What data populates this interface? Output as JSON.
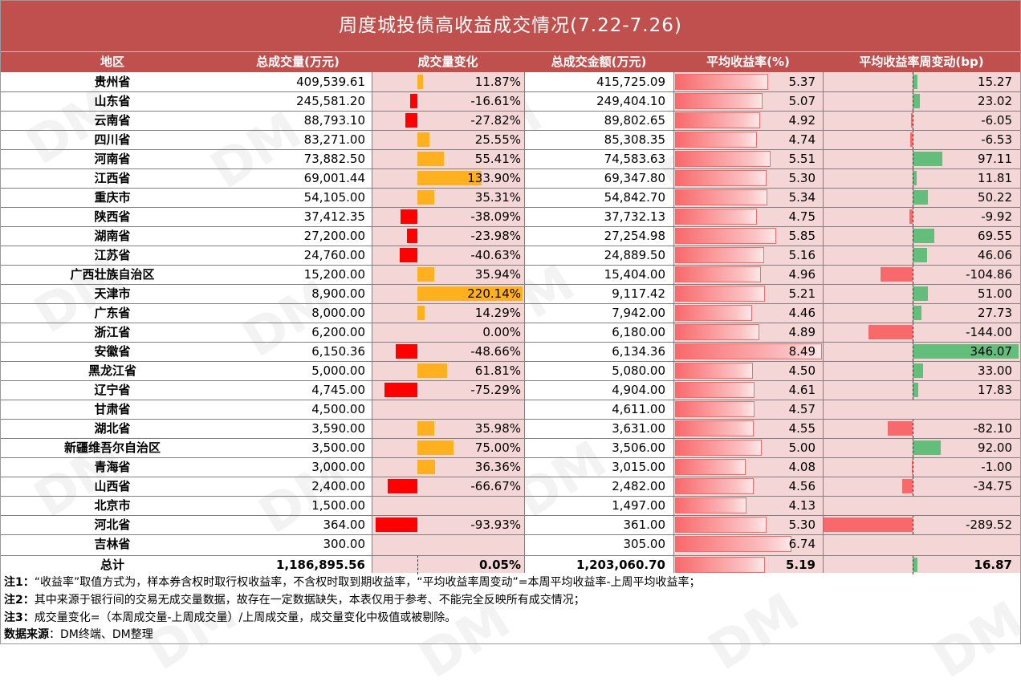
{
  "title": "周度城投债高收益成交情况(7.22-7.26)",
  "watermark_text": "DM",
  "colors": {
    "header_bg": "#c0504d",
    "band_bg": "#f4d6d6",
    "change_positive": "#ffb01f",
    "change_negative": "#ff0000",
    "yield_bar": "#f8696b",
    "bp_positive": "#63be7b",
    "bp_negative": "#f8696b"
  },
  "columns": [
    "地区",
    "总成交量(万元)",
    "成交量变化",
    "总成交金额(万元)",
    "平均收益率(%)",
    "平均收益率周变动(bp)"
  ],
  "chart_data": {
    "type": "table",
    "title": "周度城投债高收益成交情况(7.22-7.26)",
    "rows": [
      {
        "region": "贵州省",
        "volume": "409,539.61",
        "change": "11.87%",
        "change_val": 11.87,
        "amount": "415,725.09",
        "yield": "5.37",
        "yield_val": 5.37,
        "bp": "15.27",
        "bp_val": 15.27
      },
      {
        "region": "山东省",
        "volume": "245,581.20",
        "change": "-16.61%",
        "change_val": -16.61,
        "amount": "249,404.10",
        "yield": "5.07",
        "yield_val": 5.07,
        "bp": "23.02",
        "bp_val": 23.02
      },
      {
        "region": "云南省",
        "volume": "88,793.10",
        "change": "-27.82%",
        "change_val": -27.82,
        "amount": "89,802.65",
        "yield": "4.92",
        "yield_val": 4.92,
        "bp": "-6.05",
        "bp_val": -6.05
      },
      {
        "region": "四川省",
        "volume": "83,271.00",
        "change": "25.55%",
        "change_val": 25.55,
        "amount": "85,308.35",
        "yield": "4.74",
        "yield_val": 4.74,
        "bp": "-6.53",
        "bp_val": -6.53
      },
      {
        "region": "河南省",
        "volume": "73,882.50",
        "change": "55.41%",
        "change_val": 55.41,
        "amount": "74,583.63",
        "yield": "5.51",
        "yield_val": 5.51,
        "bp": "97.11",
        "bp_val": 97.11
      },
      {
        "region": "江西省",
        "volume": "69,001.44",
        "change": "133.90%",
        "change_val": 133.9,
        "amount": "69,347.80",
        "yield": "5.30",
        "yield_val": 5.3,
        "bp": "11.81",
        "bp_val": 11.81
      },
      {
        "region": "重庆市",
        "volume": "54,105.00",
        "change": "35.31%",
        "change_val": 35.31,
        "amount": "54,842.70",
        "yield": "5.34",
        "yield_val": 5.34,
        "bp": "50.22",
        "bp_val": 50.22
      },
      {
        "region": "陕西省",
        "volume": "37,412.35",
        "change": "-38.09%",
        "change_val": -38.09,
        "amount": "37,732.13",
        "yield": "4.75",
        "yield_val": 4.75,
        "bp": "-9.92",
        "bp_val": -9.92
      },
      {
        "region": "湖南省",
        "volume": "27,200.00",
        "change": "-23.98%",
        "change_val": -23.98,
        "amount": "27,254.98",
        "yield": "5.85",
        "yield_val": 5.85,
        "bp": "69.55",
        "bp_val": 69.55
      },
      {
        "region": "江苏省",
        "volume": "24,760.00",
        "change": "-40.63%",
        "change_val": -40.63,
        "amount": "24,889.50",
        "yield": "5.16",
        "yield_val": 5.16,
        "bp": "46.06",
        "bp_val": 46.06
      },
      {
        "region": "广西壮族自治区",
        "volume": "15,200.00",
        "change": "35.94%",
        "change_val": 35.94,
        "amount": "15,404.00",
        "yield": "4.96",
        "yield_val": 4.96,
        "bp": "-104.86",
        "bp_val": -104.86
      },
      {
        "region": "天津市",
        "volume": "8,900.00",
        "change": "220.14%",
        "change_val": 220.14,
        "amount": "9,117.42",
        "yield": "5.21",
        "yield_val": 5.21,
        "bp": "51.00",
        "bp_val": 51.0
      },
      {
        "region": "广东省",
        "volume": "8,000.00",
        "change": "14.29%",
        "change_val": 14.29,
        "amount": "7,942.00",
        "yield": "4.46",
        "yield_val": 4.46,
        "bp": "27.73",
        "bp_val": 27.73
      },
      {
        "region": "浙江省",
        "volume": "6,200.00",
        "change": "0.00%",
        "change_val": 0,
        "amount": "6,180.00",
        "yield": "4.89",
        "yield_val": 4.89,
        "bp": "-144.00",
        "bp_val": -144.0
      },
      {
        "region": "安徽省",
        "volume": "6,150.36",
        "change": "-48.66%",
        "change_val": -48.66,
        "amount": "6,134.36",
        "yield": "8.49",
        "yield_val": 8.49,
        "bp": "346.07",
        "bp_val": 346.07
      },
      {
        "region": "黑龙江省",
        "volume": "5,000.00",
        "change": "61.81%",
        "change_val": 61.81,
        "amount": "5,080.00",
        "yield": "4.50",
        "yield_val": 4.5,
        "bp": "33.00",
        "bp_val": 33.0
      },
      {
        "region": "辽宁省",
        "volume": "4,745.00",
        "change": "-75.29%",
        "change_val": -75.29,
        "amount": "4,904.00",
        "yield": "4.61",
        "yield_val": 4.61,
        "bp": "17.83",
        "bp_val": 17.83
      },
      {
        "region": "甘肃省",
        "volume": "4,500.00",
        "change": "",
        "change_val": null,
        "amount": "4,611.00",
        "yield": "4.57",
        "yield_val": 4.57,
        "bp": "",
        "bp_val": null
      },
      {
        "region": "湖北省",
        "volume": "3,590.00",
        "change": "35.98%",
        "change_val": 35.98,
        "amount": "3,631.00",
        "yield": "4.55",
        "yield_val": 4.55,
        "bp": "-82.10",
        "bp_val": -82.1
      },
      {
        "region": "新疆维吾尔自治区",
        "volume": "3,500.00",
        "change": "75.00%",
        "change_val": 75.0,
        "amount": "3,506.00",
        "yield": "5.00",
        "yield_val": 5.0,
        "bp": "92.00",
        "bp_val": 92.0
      },
      {
        "region": "青海省",
        "volume": "3,000.00",
        "change": "36.36%",
        "change_val": 36.36,
        "amount": "3,015.00",
        "yield": "4.08",
        "yield_val": 4.08,
        "bp": "-1.00",
        "bp_val": -1.0
      },
      {
        "region": "山西省",
        "volume": "2,400.00",
        "change": "-66.67%",
        "change_val": -66.67,
        "amount": "2,482.00",
        "yield": "4.56",
        "yield_val": 4.56,
        "bp": "-34.75",
        "bp_val": -34.75
      },
      {
        "region": "北京市",
        "volume": "1,500.00",
        "change": "",
        "change_val": null,
        "amount": "1,497.00",
        "yield": "4.13",
        "yield_val": 4.13,
        "bp": "",
        "bp_val": null
      },
      {
        "region": "河北省",
        "volume": "364.00",
        "change": "-93.93%",
        "change_val": -93.93,
        "amount": "361.00",
        "yield": "5.30",
        "yield_val": 5.3,
        "bp": "-289.52",
        "bp_val": -289.52
      },
      {
        "region": "吉林省",
        "volume": "300.00",
        "change": "",
        "change_val": null,
        "amount": "305.00",
        "yield": "6.74",
        "yield_val": 6.74,
        "bp": "",
        "bp_val": null
      }
    ],
    "total": {
      "region": "总计",
      "volume": "1,186,895.56",
      "change": "0.05%",
      "change_val": 0.05,
      "amount": "1,203,060.70",
      "yield": "5.19",
      "yield_val": 5.19,
      "bp": "16.87",
      "bp_val": 16.87
    },
    "change_range": [
      -100,
      220.14
    ],
    "yield_range": [
      0,
      8.49
    ],
    "bp_range": [
      -289.52,
      346.07
    ]
  },
  "notes": [
    {
      "label": "注1：",
      "text": "“收益率”取值方式为，样本券含权时取行权收益率，不含权时取到期收益率，“平均收益率周变动”=本周平均收益率-上周平均收益率；"
    },
    {
      "label": "注2：",
      "text": "其中来源于银行间的交易无成交量数据，故存在一定数据缺失，本表仅用于参考、不能完全反映所有成交情况；"
    },
    {
      "label": "注3：",
      "text": "成交量变化=（本周成交量-上周成交量）/上周成交量，成交量变化中极值或被剔除。"
    },
    {
      "label": "数据来源",
      "text": "：DM终端、DM整理"
    }
  ]
}
